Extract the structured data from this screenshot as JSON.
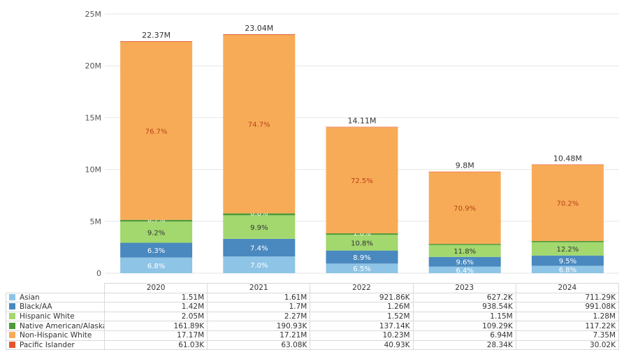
{
  "chart_data": {
    "type": "bar",
    "stacked": true,
    "categories": [
      "2020",
      "2021",
      "2022",
      "2023",
      "2024"
    ],
    "ylim": [
      0,
      25000000
    ],
    "yticks": [
      0,
      5000000,
      10000000,
      15000000,
      20000000,
      25000000
    ],
    "ytick_labels": [
      "0",
      "5M",
      "10M",
      "15M",
      "20M",
      "25M"
    ],
    "totals": [
      22370000,
      23040000,
      14110000,
      9800000,
      10480000
    ],
    "total_labels": [
      "22.37M",
      "23.04M",
      "14.11M",
      "9.8M",
      "10.48M"
    ],
    "series": [
      {
        "name": "Asian",
        "color": "#8ec4e6",
        "label_color": "#ffffff",
        "values": [
          1510000,
          1610000,
          921860,
          627200,
          711290
        ],
        "value_labels": [
          "1.51M",
          "1.61M",
          "921.86K",
          "627.2K",
          "711.29K"
        ],
        "pct_labels": [
          "6.8%",
          "7.0%",
          "6.5%",
          "6.4%",
          "6.8%"
        ]
      },
      {
        "name": "Black/AA",
        "color": "#4a89bf",
        "label_color": "#ffffff",
        "values": [
          1420000,
          1700000,
          1260000,
          938540,
          991080
        ],
        "value_labels": [
          "1.42M",
          "1.7M",
          "1.26M",
          "938.54K",
          "991.08K"
        ],
        "pct_labels": [
          "6.3%",
          "7.4%",
          "8.9%",
          "9.6%",
          "9.5%"
        ]
      },
      {
        "name": "Hispanic White",
        "color": "#a2d86e",
        "label_color": "#333333",
        "values": [
          2050000,
          2270000,
          1520000,
          1150000,
          1280000
        ],
        "value_labels": [
          "2.05M",
          "2.27M",
          "1.52M",
          "1.15M",
          "1.28M"
        ],
        "pct_labels": [
          "9.2%",
          "9.9%",
          "10.8%",
          "11.8%",
          "12.2%"
        ]
      },
      {
        "name": "Native American/Alaskan",
        "color": "#4e9a3a",
        "label_color": "#ffffff",
        "values": [
          161890,
          190930,
          137140,
          109290,
          117220
        ],
        "value_labels": [
          "161.89K",
          "190.93K",
          "137.14K",
          "109.29K",
          "117.22K"
        ],
        "pct_labels": [
          "0.7%",
          "0.8%",
          "1.0%",
          "",
          ""
        ]
      },
      {
        "name": "Non-Hispanic White",
        "color": "#f8ab57",
        "label_color": "#b5431a",
        "values": [
          17170000,
          17210000,
          10230000,
          6940000,
          7350000
        ],
        "value_labels": [
          "17.17M",
          "17.21M",
          "10.23M",
          "6.94M",
          "7.35M"
        ],
        "pct_labels": [
          "76.7%",
          "74.7%",
          "72.5%",
          "70.9%",
          "70.2%"
        ]
      },
      {
        "name": "Pacific Islander",
        "color": "#e5542a",
        "label_color": "#ffffff",
        "values": [
          61030,
          63080,
          40930,
          28340,
          30020
        ],
        "value_labels": [
          "61.03K",
          "63.08K",
          "40.93K",
          "28.34K",
          "30.02K"
        ],
        "pct_labels": [
          "",
          "",
          "",
          "",
          ""
        ]
      }
    ]
  }
}
